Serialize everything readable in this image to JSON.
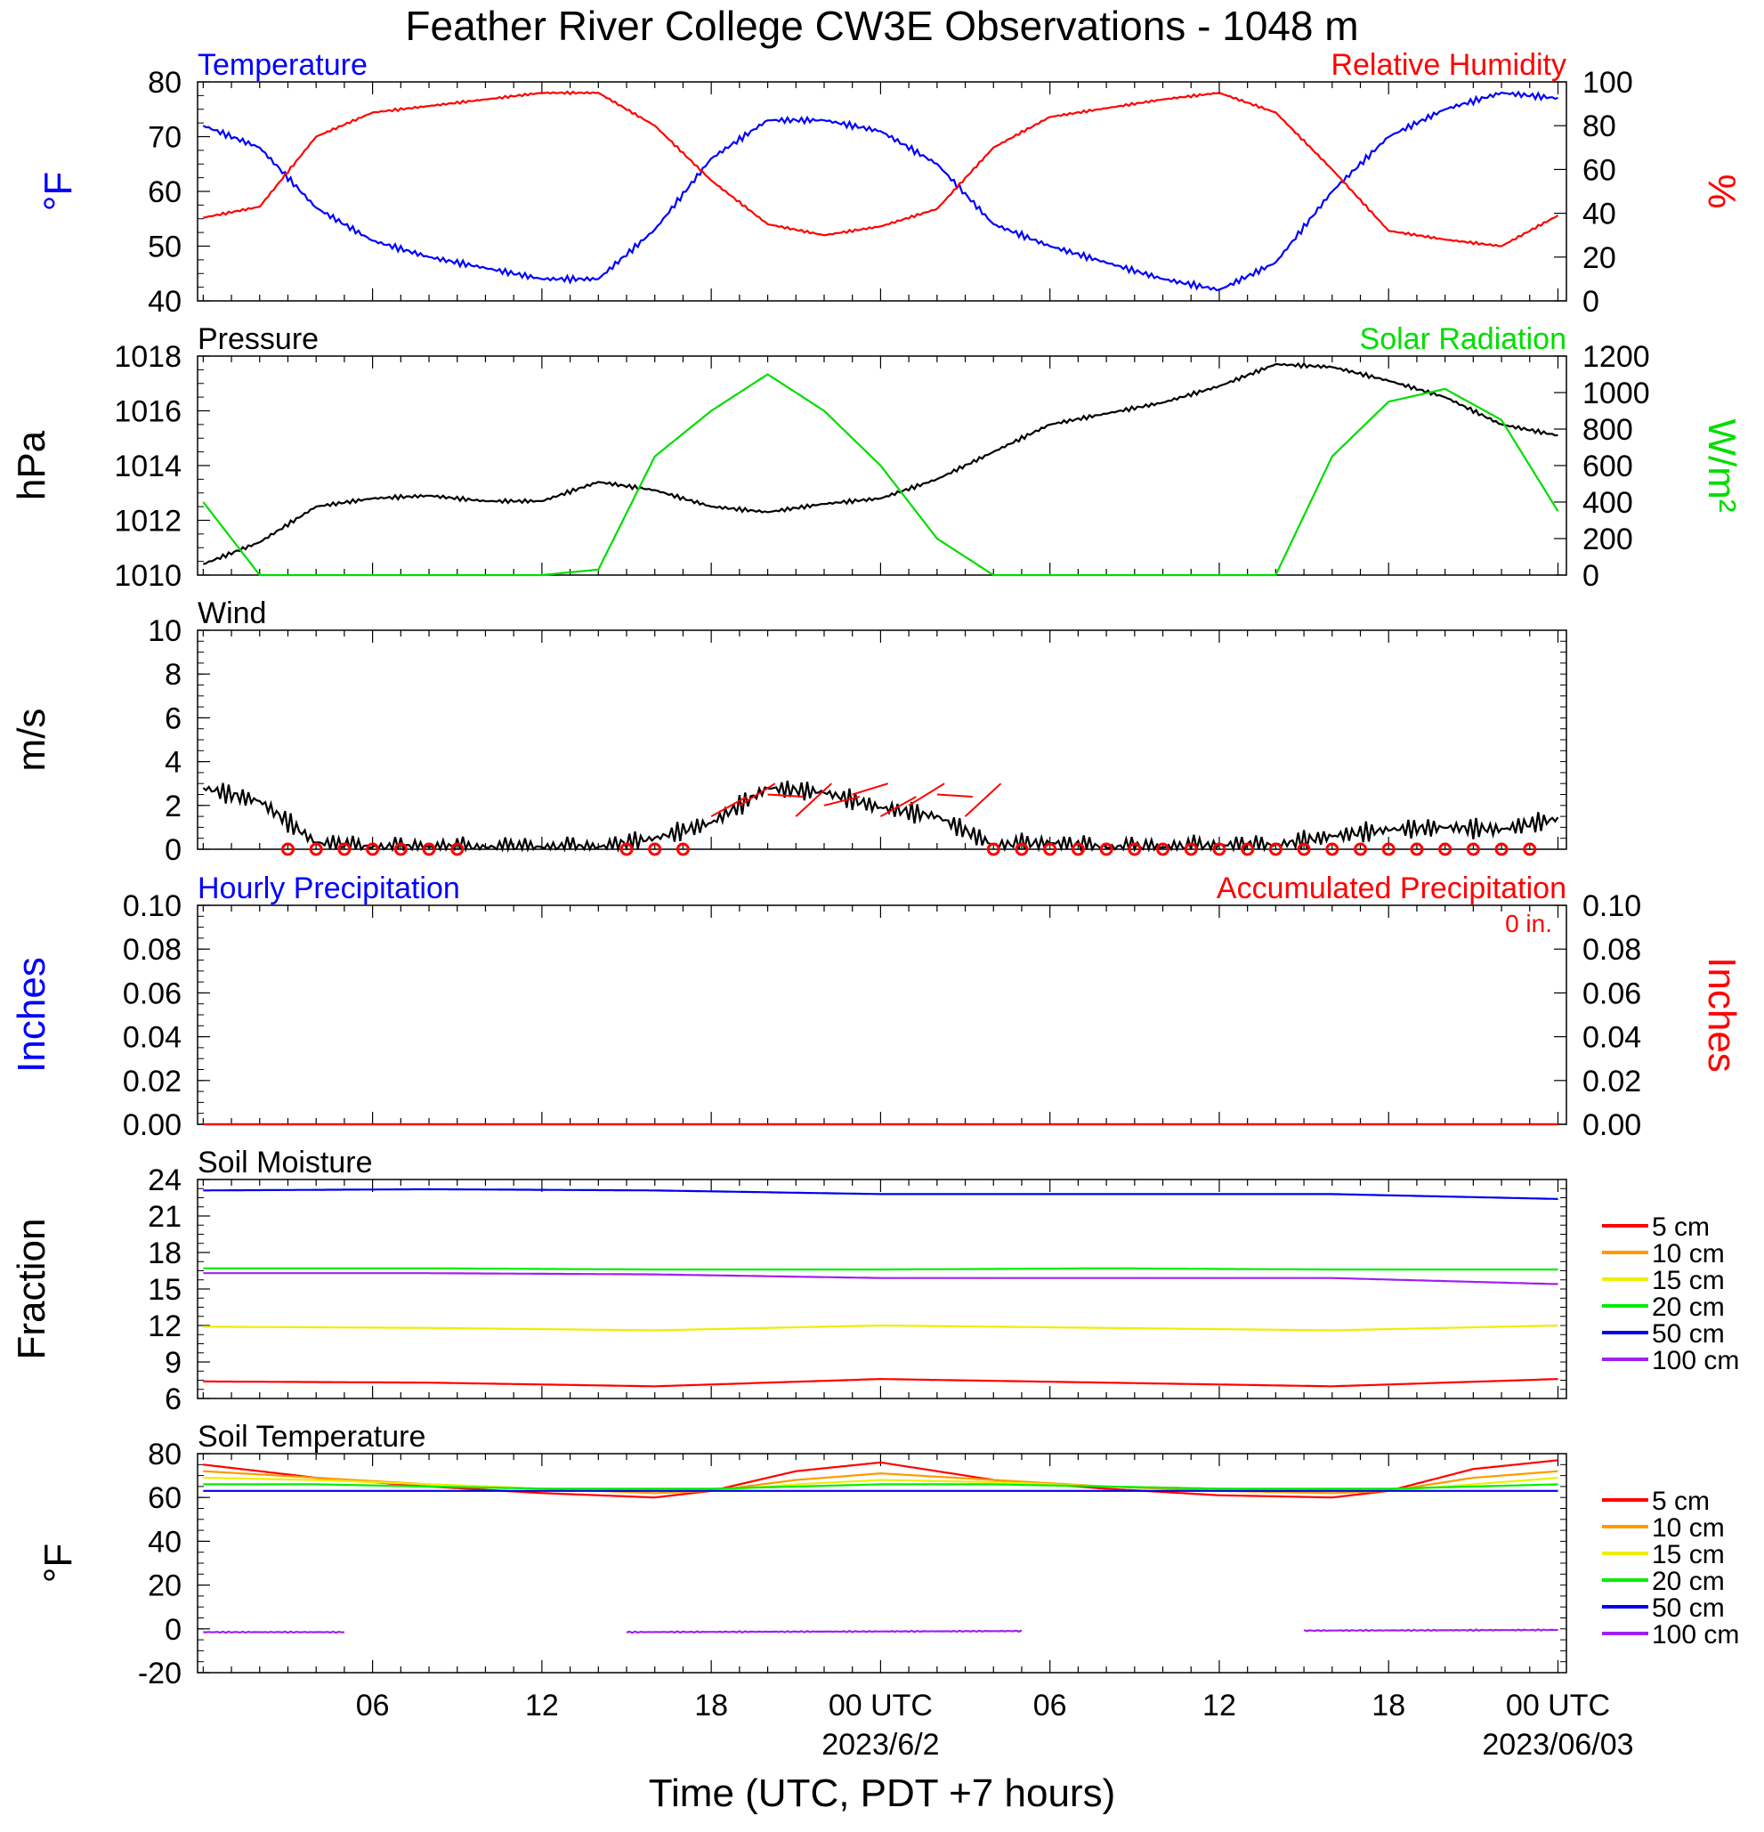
{
  "title": "Feather River College CW3E Observations - 1048 m",
  "xaxis": {
    "label": "Time (UTC, PDT +7 hours)",
    "ticks": [
      "06",
      "12",
      "18",
      "00 UTC",
      "06",
      "12",
      "18",
      "00 UTC"
    ],
    "dates": [
      "2023/6/2",
      "2023/06/03"
    ]
  },
  "colors": {
    "temperature": "#0000ff",
    "humidity": "#ff0000",
    "pressure": "#000000",
    "solar": "#00dd00",
    "wind": "#000000",
    "barb": "#ff0000",
    "precip_hourly": "#0000ff",
    "precip_accum": "#ff0000",
    "soil_5": "#ff0000",
    "soil_10": "#ff9900",
    "soil_15": "#eeee00",
    "soil_20": "#00ee00",
    "soil_50": "#0000ee",
    "soil_100": "#a020f0"
  },
  "chart_data": [
    {
      "type": "line",
      "title_left": "Temperature",
      "title_right": "Relative Humidity",
      "ylabel_left": "°F",
      "ylabel_right": "%",
      "ylim_left": [
        40,
        80
      ],
      "ylim_right": [
        0,
        100
      ],
      "yticks_left": [
        "40",
        "50",
        "60",
        "70",
        "80"
      ],
      "yticks_right": [
        "0",
        "20",
        "40",
        "60",
        "80",
        "100"
      ],
      "x_hours": [
        0,
        2,
        4,
        6,
        8,
        10,
        12,
        14,
        16,
        18,
        20,
        22,
        24,
        26,
        28,
        30,
        32,
        34,
        36,
        38,
        40,
        42,
        44,
        46,
        48
      ],
      "series": [
        {
          "name": "Temperature",
          "axis": "left",
          "values": [
            72,
            68,
            57,
            51,
            48,
            46,
            44,
            44,
            53,
            66,
            73,
            73,
            71,
            65,
            54,
            50,
            47,
            44,
            42,
            47,
            60,
            70,
            75,
            78,
            77
          ]
        },
        {
          "name": "Relative Humidity",
          "axis": "right",
          "values": [
            38,
            43,
            75,
            86,
            89,
            92,
            95,
            95,
            80,
            55,
            35,
            30,
            34,
            42,
            70,
            84,
            88,
            92,
            95,
            86,
            60,
            32,
            28,
            25,
            39
          ]
        }
      ]
    },
    {
      "type": "line",
      "title_left": "Pressure",
      "title_right": "Solar Radiation",
      "ylabel_left": "hPa",
      "ylabel_right": "W/m²",
      "ylim_left": [
        1010,
        1018
      ],
      "ylim_right": [
        0,
        1200
      ],
      "yticks_left": [
        "1010",
        "1012",
        "1014",
        "1016",
        "1018"
      ],
      "yticks_right": [
        "0",
        "200",
        "400",
        "600",
        "800",
        "1000",
        "1200"
      ],
      "x_hours": [
        0,
        2,
        4,
        6,
        8,
        10,
        12,
        14,
        16,
        18,
        20,
        22,
        24,
        26,
        28,
        30,
        32,
        34,
        36,
        38,
        40,
        42,
        44,
        46,
        48
      ],
      "series": [
        {
          "name": "Pressure",
          "axis": "left",
          "values": [
            1010.4,
            1011.2,
            1012.5,
            1012.8,
            1012.9,
            1012.7,
            1012.7,
            1013.4,
            1013.1,
            1012.5,
            1012.3,
            1012.6,
            1012.8,
            1013.5,
            1014.5,
            1015.5,
            1015.9,
            1016.3,
            1016.9,
            1017.7,
            1017.6,
            1017.1,
            1016.5,
            1015.5,
            1015.1
          ]
        },
        {
          "name": "Solar Radiation",
          "axis": "right",
          "values": [
            400,
            0,
            0,
            0,
            0,
            0,
            0,
            30,
            650,
            900,
            1100,
            900,
            600,
            200,
            0,
            0,
            0,
            0,
            0,
            0,
            650,
            950,
            1020,
            850,
            350
          ]
        }
      ]
    },
    {
      "type": "line",
      "title_left": "Wind",
      "ylabel_left": "m/s",
      "ylim_left": [
        0,
        10
      ],
      "yticks_left": [
        "0",
        "2",
        "4",
        "6",
        "8",
        "10"
      ],
      "x_hours": [
        0,
        2,
        4,
        6,
        8,
        10,
        12,
        14,
        16,
        18,
        20,
        22,
        24,
        26,
        28,
        30,
        32,
        34,
        36,
        38,
        40,
        42,
        44,
        46,
        48
      ],
      "series": [
        {
          "name": "Wind",
          "axis": "left",
          "values": [
            2.8,
            2.2,
            0.3,
            0.1,
            0.1,
            0.1,
            0.1,
            0.1,
            0.5,
            1.2,
            2.8,
            2.6,
            1.9,
            1.5,
            0.2,
            0.3,
            0.1,
            0.1,
            0.2,
            0.2,
            0.6,
            0.9,
            1.0,
            0.9,
            1.4
          ]
        }
      ]
    },
    {
      "type": "line",
      "title_left": "Hourly Precipitation",
      "title_right": "Accumulated Precipitation",
      "annotation": "0 in.",
      "ylabel_left": "Inches",
      "ylabel_right": "Inches",
      "ylim_left": [
        0,
        0.1
      ],
      "ylim_right": [
        0,
        0.1
      ],
      "yticks_left": [
        "0.00",
        "0.02",
        "0.04",
        "0.06",
        "0.08",
        "0.10"
      ],
      "yticks_right": [
        "0.00",
        "0.02",
        "0.04",
        "0.06",
        "0.08",
        "0.10"
      ],
      "x_hours": [
        0,
        48
      ],
      "series": [
        {
          "name": "Hourly Precipitation",
          "axis": "left",
          "values": [
            0,
            0
          ]
        },
        {
          "name": "Accumulated Precipitation",
          "axis": "right",
          "values": [
            0,
            0
          ]
        }
      ]
    },
    {
      "type": "line",
      "title_left": "Soil Moisture",
      "ylabel_left": "Fraction",
      "ylim_left": [
        6,
        24
      ],
      "yticks_left": [
        "6",
        "9",
        "12",
        "15",
        "18",
        "21",
        "24"
      ],
      "legend": [
        "5 cm",
        "10 cm",
        "15 cm",
        "20 cm",
        "50 cm",
        "100 cm"
      ],
      "x_hours": [
        0,
        8,
        16,
        24,
        32,
        40,
        48
      ],
      "series": [
        {
          "name": "5 cm",
          "values": [
            7.4,
            7.3,
            7.0,
            7.6,
            7.3,
            7.0,
            7.6
          ]
        },
        {
          "name": "15 cm",
          "values": [
            11.9,
            11.8,
            11.6,
            12.0,
            11.8,
            11.6,
            12.0
          ]
        },
        {
          "name": "20 cm",
          "values": [
            16.7,
            16.7,
            16.6,
            16.6,
            16.7,
            16.6,
            16.6
          ]
        },
        {
          "name": "50 cm",
          "values": [
            23.1,
            23.2,
            23.1,
            22.8,
            22.8,
            22.8,
            22.4
          ]
        },
        {
          "name": "100 cm",
          "values": [
            16.3,
            16.3,
            16.2,
            15.9,
            15.9,
            15.9,
            15.4
          ]
        }
      ]
    },
    {
      "type": "line",
      "title_left": "Soil Temperature",
      "ylabel_left": "°F",
      "ylim_left": [
        -20,
        80
      ],
      "yticks_left": [
        "-20",
        "0",
        "20",
        "40",
        "60",
        "80"
      ],
      "legend": [
        "5 cm",
        "10 cm",
        "15 cm",
        "20 cm",
        "50 cm",
        "100 cm"
      ],
      "x_hours": [
        0,
        4,
        8,
        12,
        16,
        18,
        21,
        24,
        28,
        32,
        36,
        40,
        42,
        45,
        48
      ],
      "series": [
        {
          "name": "5 cm",
          "values": [
            75,
            69,
            65,
            62,
            60,
            63,
            72,
            76,
            68,
            64,
            61,
            60,
            63,
            73,
            77
          ]
        },
        {
          "name": "10 cm",
          "values": [
            72,
            69,
            66,
            64,
            62,
            63,
            68,
            71,
            68,
            65,
            63,
            62,
            63,
            69,
            72
          ]
        },
        {
          "name": "15 cm",
          "values": [
            69,
            68,
            66,
            64,
            63,
            63,
            66,
            68,
            67,
            65,
            64,
            63,
            63,
            66,
            69
          ]
        },
        {
          "name": "20 cm",
          "values": [
            66,
            66,
            65,
            64,
            64,
            64,
            65,
            66,
            66,
            65,
            64,
            64,
            64,
            65,
            66
          ]
        },
        {
          "name": "50 cm",
          "values": [
            63,
            63,
            63,
            63,
            63,
            63,
            63,
            63,
            63,
            63,
            63,
            63,
            63,
            63,
            63
          ]
        },
        {
          "name": "100 cm",
          "segments": [
            {
              "x_hours": [
                0,
                5
              ],
              "values": [
                -1.5,
                -1.5
              ]
            },
            {
              "x_hours": [
                15,
                29
              ],
              "values": [
                -1.5,
                -1.0
              ]
            },
            {
              "x_hours": [
                39,
                48
              ],
              "values": [
                -0.8,
                -0.5
              ]
            }
          ]
        }
      ]
    }
  ]
}
